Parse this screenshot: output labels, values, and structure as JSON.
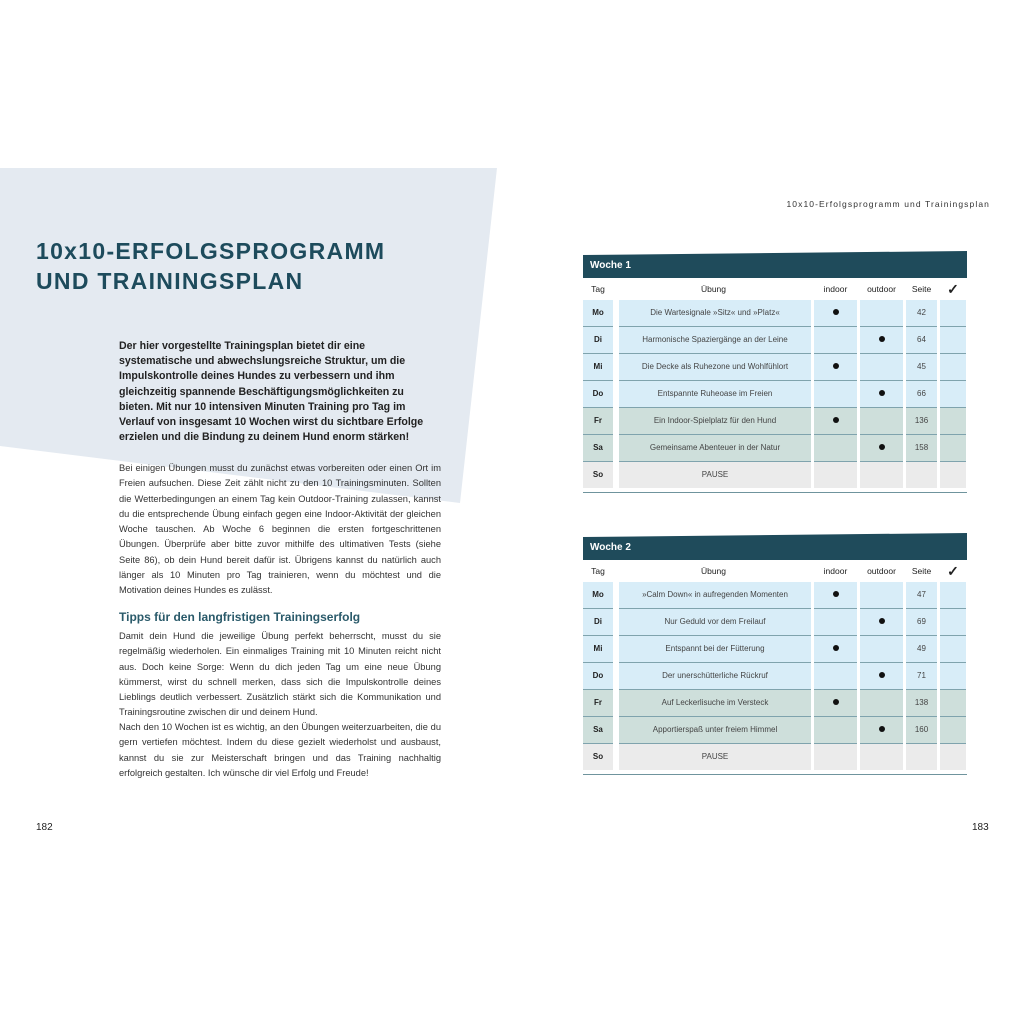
{
  "left_page": {
    "title_line1": "10x10-ERFOLGSPROGRAMM",
    "title_line2": "UND TRAININGSPLAN",
    "lead": "Der hier vorgestellte Trainingsplan bietet dir eine systematische und abwechslungsreiche Struktur, um die Impulskontrolle deines Hundes zu verbessern und ihm gleichzeitig spannende Beschäftigungsmöglichkeiten zu bieten. Mit nur 10 intensiven Minuten Training pro Tag im Verlauf von insgesamt 10 Wochen wirst du sichtbare Erfolge erzielen und die Bindung zu deinem Hund enorm stärken!",
    "paragraph1": "Bei einigen Übungen musst du zunächst etwas vorbereiten oder einen Ort im Freien aufsuchen. Diese Zeit zählt nicht zu den 10 Trainingsminuten. Sollten die Wetterbedingungen an einem Tag kein Outdoor-Training zulassen, kannst du die entsprechende Übung einfach gegen eine Indoor-Aktivität der gleichen Woche tauschen. Ab Woche 6 beginnen die ersten fortgeschrittenen Übungen. Überprüfe aber bitte zuvor mithilfe des ultimativen Tests (siehe Seite 86), ob dein Hund bereit dafür ist. Übrigens kannst du natürlich auch länger als 10 Minuten pro Tag trainieren, wenn du möchtest und die Motivation deines Hundes es zulässt.",
    "subheading": "Tipps für den langfristigen Trainingserfolg",
    "paragraph2": "Damit dein Hund die jeweilige Übung perfekt beherrscht, musst du sie regelmäßig wiederholen. Ein einmaliges Training mit 10 Minuten reicht nicht aus. Doch keine Sorge: Wenn du dich jeden Tag um eine neue Übung kümmerst, wirst du schnell merken, dass sich die Impulskontrolle deines Lieblings deutlich verbessert. Zusätzlich stärkt sich die Kommunikation und Trainingsroutine zwischen dir und deinem Hund.",
    "paragraph3": "Nach den 10 Wochen ist es wichtig, an den Übungen weiterzuarbeiten, die du gern vertiefen möchtest. Indem du diese gezielt wiederholst und ausbaust, kannst du sie zur Meisterschaft bringen und das Training nachhaltig erfolgreich gestalten. Ich wünsche dir viel Erfolg und Freude!",
    "page_number": "182"
  },
  "right_page": {
    "running_head": "10x10-Erfolgsprogramm und Trainingsplan",
    "page_number": "183",
    "columns": [
      "Tag",
      "Übung",
      "indoor",
      "outdoor",
      "Seite",
      "✓"
    ],
    "weeks": [
      {
        "title": "Woche 1",
        "rows": [
          {
            "tag": "Mo",
            "exercise": "Die Wartesignale »Sitz« und »Platz«",
            "indoor": true,
            "outdoor": false,
            "page": "42"
          },
          {
            "tag": "Di",
            "exercise": "Harmonische Spaziergänge an der Leine",
            "indoor": false,
            "outdoor": true,
            "page": "64"
          },
          {
            "tag": "Mi",
            "exercise": "Die Decke als Ruhezone und Wohlfühlort",
            "indoor": true,
            "outdoor": false,
            "page": "45"
          },
          {
            "tag": "Do",
            "exercise": "Entspannte Ruheoase im Freien",
            "indoor": false,
            "outdoor": true,
            "page": "66"
          },
          {
            "tag": "Fr",
            "exercise": "Ein Indoor-Spielplatz für den Hund",
            "indoor": true,
            "outdoor": false,
            "page": "136"
          },
          {
            "tag": "Sa",
            "exercise": "Gemeinsame Abenteuer in der Natur",
            "indoor": false,
            "outdoor": true,
            "page": "158"
          },
          {
            "tag": "So",
            "exercise": "PAUSE",
            "indoor": false,
            "outdoor": false,
            "page": ""
          }
        ]
      },
      {
        "title": "Woche 2",
        "rows": [
          {
            "tag": "Mo",
            "exercise": "»Calm Down« in aufregenden Momenten",
            "indoor": true,
            "outdoor": false,
            "page": "47"
          },
          {
            "tag": "Di",
            "exercise": "Nur Geduld vor dem Freilauf",
            "indoor": false,
            "outdoor": true,
            "page": "69"
          },
          {
            "tag": "Mi",
            "exercise": "Entspannt bei der Fütterung",
            "indoor": true,
            "outdoor": false,
            "page": "49"
          },
          {
            "tag": "Do",
            "exercise": "Der unerschütterliche Rückruf",
            "indoor": false,
            "outdoor": true,
            "page": "71"
          },
          {
            "tag": "Fr",
            "exercise": "Auf Leckerlisuche im Versteck",
            "indoor": true,
            "outdoor": false,
            "page": "138"
          },
          {
            "tag": "Sa",
            "exercise": "Apportierspaß unter freiem Himmel",
            "indoor": false,
            "outdoor": true,
            "page": "160"
          },
          {
            "tag": "So",
            "exercise": "PAUSE",
            "indoor": false,
            "outdoor": false,
            "page": ""
          }
        ]
      }
    ]
  },
  "colors": {
    "title": "#1d4b5c",
    "table_header": "#1f4b5b",
    "row_weekday": "#d8edf8",
    "row_weekend": "#cedfdb",
    "row_pause": "#ebebeb",
    "background_shape": "#e4eaf1"
  }
}
